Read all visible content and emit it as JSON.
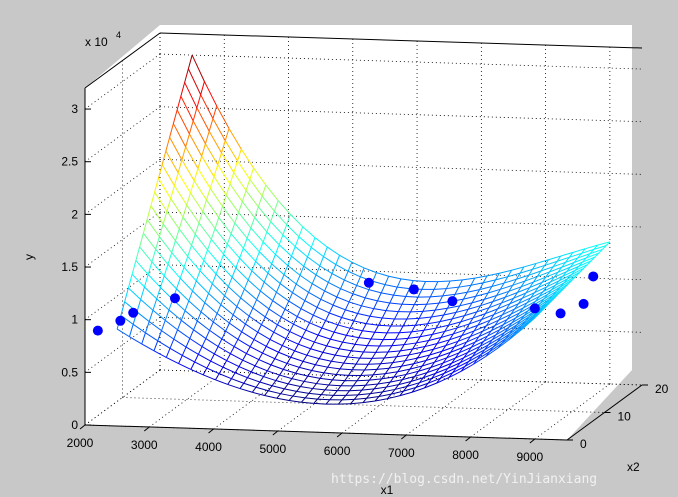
{
  "chart_data": {
    "type": "surface3d",
    "scale_exponent": "x 10",
    "scale_power": "4",
    "x1": {
      "label": "x1",
      "ticks": [
        2000,
        3000,
        4000,
        5000,
        6000,
        7000,
        8000,
        9000
      ],
      "range": [
        2000,
        9500
      ]
    },
    "x2": {
      "label": "x2",
      "ticks": [
        0,
        10,
        20
      ],
      "range": [
        0,
        20
      ]
    },
    "y": {
      "label": "y",
      "ticks": [
        0,
        0.5,
        1,
        1.5,
        2,
        2.5,
        3
      ],
      "range": [
        0,
        3.2
      ],
      "unit_multiplier": 10000
    },
    "surface_corners_y": {
      "x1_2500_x2_0": 9200,
      "x1_2500_x2_20": 30000,
      "x1_9000_x2_0": 11500,
      "x1_9000_x2_20": 13500,
      "min_y": 2700
    },
    "points": [
      {
        "x1": 2200,
        "x2": 0,
        "y": 9000
      },
      {
        "x1": 2550,
        "x2": 0,
        "y": 10000
      },
      {
        "x1": 2750,
        "x2": 0,
        "y": 10800
      },
      {
        "x1": 3400,
        "x2": 0,
        "y": 12300
      },
      {
        "x1": 6300,
        "x2": 2,
        "y": 13800
      },
      {
        "x1": 7000,
        "x2": 2,
        "y": 13300
      },
      {
        "x1": 7600,
        "x2": 2,
        "y": 12300
      },
      {
        "x1": 9000,
        "x2": 0,
        "y": 12400
      },
      {
        "x1": 9400,
        "x2": 0,
        "y": 12000
      },
      {
        "x1": 9700,
        "x2": 1,
        "y": 12700
      },
      {
        "x1": 9500,
        "x2": 7,
        "y": 13700
      }
    ],
    "grid": true,
    "colormap": "jet",
    "marker_color": "#0000ff"
  },
  "watermark": "https://blog.csdn.net/YinJianxiang"
}
